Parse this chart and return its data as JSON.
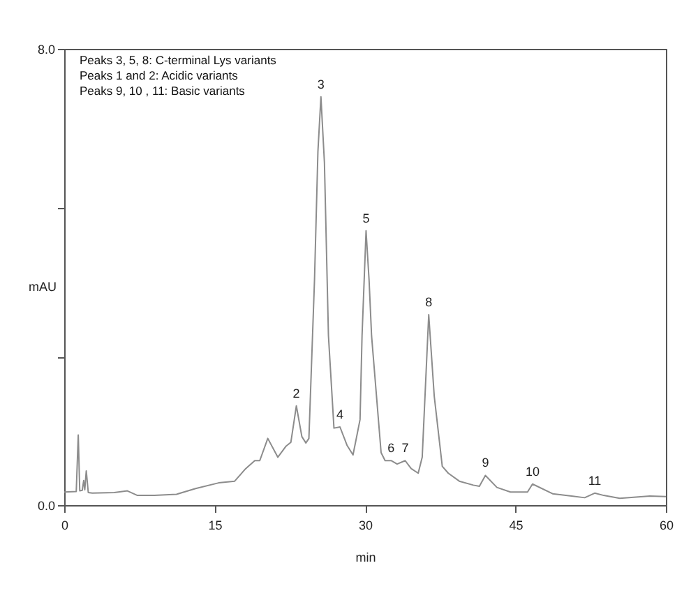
{
  "chart_data": {
    "type": "line",
    "xlabel": "min",
    "ylabel": "mAU",
    "color": "#8c8c8c",
    "annotations": [
      "Peaks 3, 5, 8: C-terminal Lys variants",
      "Peaks 1 and 2: Acidic variants",
      "Peaks 9, 10 , 11: Basic variants",
      {
        "text": "2",
        "x": 23.15,
        "y": 1.74
      },
      {
        "text": "3",
        "x": 25.6,
        "y": 7.16
      },
      {
        "text": "4",
        "x": 27.5,
        "y": 1.37
      },
      {
        "text": "5",
        "x": 30.1,
        "y": 4.81
      },
      {
        "text": "6",
        "x": 32.6,
        "y": 0.78
      },
      {
        "text": "7",
        "x": 34.0,
        "y": 0.78
      },
      {
        "text": "8",
        "x": 36.35,
        "y": 3.34
      },
      {
        "text": "9",
        "x": 42.0,
        "y": 0.52
      },
      {
        "text": "10",
        "x": 46.7,
        "y": 0.37
      },
      {
        "text": "11",
        "x": 52.9,
        "y": 0.21
      }
    ],
    "x": [
      0,
      1.2,
      1.4,
      1.55,
      1.8,
      1.94,
      2.05,
      2.2,
      2.4,
      2.8,
      5.0,
      6.3,
      7.3,
      9.0,
      11.2,
      13.1,
      15.4,
      17.0,
      18.1,
      19.0,
      19.5,
      20.3,
      21.3,
      22.1,
      22.6,
      23.15,
      23.7,
      24.1,
      24.4,
      24.96,
      25.3,
      25.6,
      25.95,
      26.35,
      26.9,
      27.5,
      28.2,
      28.8,
      29.5,
      29.7,
      30.1,
      30.4,
      30.65,
      31.6,
      32.0,
      32.6,
      33.2,
      34.0,
      34.6,
      35.3,
      35.7,
      36.35,
      36.9,
      37.7,
      38.3,
      39.4,
      40.8,
      41.4,
      42.0,
      43.15,
      44.5,
      46.2,
      46.7,
      48.7,
      50.6,
      51.9,
      52.9,
      53.8,
      55.4,
      58.4,
      60
    ],
    "values": [
      0.23,
      0.24,
      1.23,
      0.25,
      0.26,
      0.43,
      0.27,
      0.6,
      0.22,
      0.21,
      0.22,
      0.25,
      0.17,
      0.17,
      0.19,
      0.29,
      0.39,
      0.42,
      0.64,
      0.78,
      0.78,
      1.17,
      0.84,
      1.03,
      1.1,
      1.74,
      1.2,
      1.09,
      1.17,
      3.95,
      6.2,
      7.16,
      6.0,
      2.97,
      1.35,
      1.37,
      1.05,
      0.88,
      1.5,
      2.97,
      4.81,
      3.95,
      2.97,
      0.92,
      0.78,
      0.78,
      0.72,
      0.78,
      0.64,
      0.56,
      0.84,
      3.34,
      1.91,
      0.68,
      0.56,
      0.42,
      0.35,
      0.33,
      0.52,
      0.31,
      0.23,
      0.23,
      0.37,
      0.2,
      0.16,
      0.13,
      0.21,
      0.17,
      0.12,
      0.16,
      0.15
    ],
    "xlim": [
      0,
      60
    ],
    "xticks": [
      0,
      15,
      30,
      45,
      60
    ],
    "ylim": [
      0,
      8
    ],
    "yticks": [
      {
        "value": 0,
        "label": "0.0"
      },
      {
        "value": 2.6,
        "label": null
      },
      {
        "value": 5.2,
        "label": null
      },
      {
        "value": 8,
        "label": "8.0"
      }
    ],
    "grid": false
  }
}
